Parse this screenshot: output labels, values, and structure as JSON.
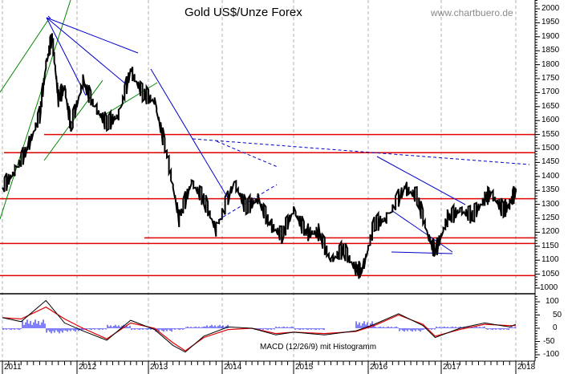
{
  "header": {
    "title": "Gold US$/Unze Forex",
    "watermark": "www.chartbuero.de"
  },
  "macd_panel": {
    "label": "MACD (12/26/9) mit Histogramm"
  },
  "colors": {
    "price": "#000000",
    "support_resistance": "#e00000",
    "trendline_blue": "#0000cc",
    "trendline_green": "#008800",
    "macd_line": "#000000",
    "signal_line": "#e00000",
    "histogram": "#0000ff",
    "grid": "#b0b0b0"
  },
  "chart_data": [
    {
      "type": "line",
      "title": "Gold US$/Unze Forex",
      "xlabel": "",
      "ylabel": "",
      "x_tick_labels": [
        "2011",
        "2012",
        "2013",
        "2014",
        "2015",
        "2016",
        "2017",
        "2018"
      ],
      "y_tick_labels": [
        "2000",
        "1950",
        "1900",
        "1850",
        "1800",
        "1750",
        "1700",
        "1650",
        "1600",
        "1550",
        "1500",
        "1450",
        "1400",
        "1350",
        "1300",
        "1250",
        "1200",
        "1150",
        "1100",
        "1050",
        "1000"
      ],
      "ylim": [
        1000,
        2000
      ],
      "grid": "vertical dashed at year boundaries",
      "x": [
        "2011-01",
        "2011-03",
        "2011-05",
        "2011-07",
        "2011-08",
        "2011-09",
        "2011-10",
        "2011-11",
        "2011-12",
        "2012-02",
        "2012-04",
        "2012-06",
        "2012-08",
        "2012-10",
        "2012-12",
        "2013-02",
        "2013-04",
        "2013-06",
        "2013-08",
        "2013-10",
        "2013-12",
        "2014-03",
        "2014-05",
        "2014-07",
        "2014-09",
        "2014-11",
        "2015-01",
        "2015-03",
        "2015-05",
        "2015-07",
        "2015-09",
        "2015-11",
        "2015-12",
        "2016-02",
        "2016-04",
        "2016-07",
        "2016-09",
        "2016-11",
        "2016-12",
        "2017-02",
        "2017-04",
        "2017-06",
        "2017-08",
        "2017-09",
        "2017-11",
        "2017-12",
        "2018-01"
      ],
      "series": [
        {
          "name": "Gold price (US$/oz)",
          "values": [
            1360,
            1420,
            1500,
            1620,
            1800,
            1900,
            1680,
            1720,
            1580,
            1740,
            1650,
            1590,
            1620,
            1780,
            1700,
            1670,
            1480,
            1250,
            1380,
            1320,
            1210,
            1380,
            1290,
            1320,
            1230,
            1190,
            1280,
            1200,
            1200,
            1100,
            1140,
            1070,
            1060,
            1230,
            1250,
            1360,
            1330,
            1180,
            1130,
            1250,
            1280,
            1260,
            1320,
            1340,
            1280,
            1300,
            1350
          ]
        }
      ],
      "horizontal_levels": [
        1550,
        1485,
        1320,
        1180,
        1160,
        1045
      ],
      "trendlines": {
        "blue_fan_from_2011_peak": [
          "1920 -> 1790 (late 2012)",
          "1920 -> 1560 (early 2012)",
          "1920 -> 1590 (2012)"
        ],
        "blue_2013_downtrend": "1680 -> 1230 (end 2013)",
        "blue_dashed_resistance": "1440 (2013) -> 1355 (2018)",
        "blue_2016_channel": [
          "1385 -> 1230",
          "1280 -> 1095"
        ],
        "green_uptrend_channel": [
          "1180 (2011) -> 2000+",
          "1520 (2012) -> 1640 (2012)"
        ]
      }
    },
    {
      "type": "line",
      "title": "MACD (12/26/9) mit Histogramm",
      "y_tick_labels": [
        "100",
        "50",
        "0",
        "-50",
        "-100"
      ],
      "ylim": [
        -110,
        120
      ],
      "x": [
        "2011-01",
        "2011-04",
        "2011-08",
        "2011-11",
        "2012-02",
        "2012-06",
        "2012-10",
        "2013-02",
        "2013-05",
        "2013-07",
        "2013-10",
        "2014-02",
        "2014-06",
        "2014-10",
        "2015-01",
        "2015-06",
        "2015-11",
        "2016-02",
        "2016-06",
        "2016-10",
        "2016-12",
        "2017-04",
        "2017-08",
        "2017-12",
        "2018-01"
      ],
      "series": [
        {
          "name": "MACD",
          "values": [
            40,
            25,
            105,
            20,
            -10,
            -45,
            30,
            -5,
            -65,
            -90,
            -30,
            5,
            0,
            -25,
            -15,
            -25,
            -10,
            15,
            55,
            10,
            -35,
            0,
            20,
            5,
            15
          ]
        },
        {
          "name": "Signal",
          "values": [
            40,
            35,
            80,
            35,
            0,
            -40,
            20,
            0,
            -55,
            -85,
            -35,
            -5,
            0,
            -20,
            -15,
            -20,
            -12,
            10,
            50,
            15,
            -30,
            -5,
            15,
            10,
            10
          ]
        },
        {
          "name": "Histogram",
          "values": [
            0,
            -5,
            25,
            -15,
            -10,
            -5,
            10,
            -5,
            -10,
            -5,
            5,
            10,
            0,
            -5,
            5,
            -5,
            0,
            20,
            5,
            -10,
            -5,
            5,
            5,
            -5,
            5
          ]
        }
      ]
    }
  ]
}
